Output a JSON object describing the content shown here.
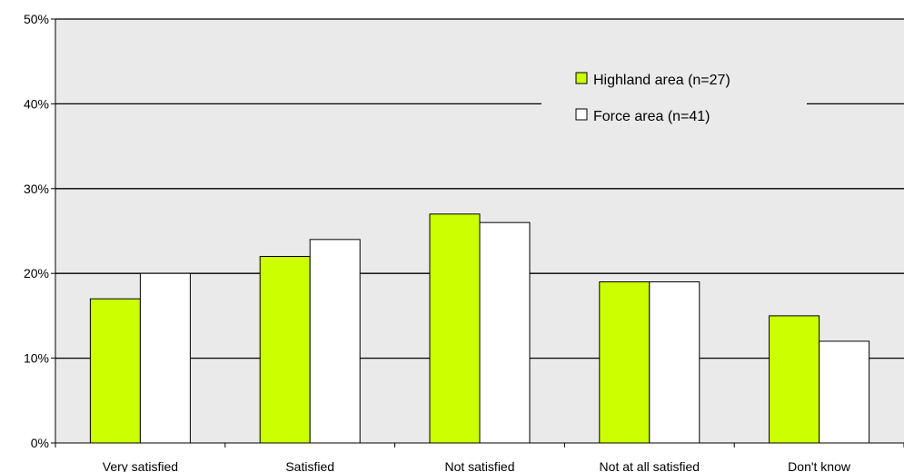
{
  "chart_data": {
    "type": "bar",
    "categories": [
      "Very satisfied",
      "Satisfied",
      "Not satisfied",
      "Not at all satisfied",
      "Don't know"
    ],
    "series": [
      {
        "name": "Highland area (n=27)",
        "values": [
          17,
          22,
          27,
          19,
          15
        ],
        "color": "#ccff00"
      },
      {
        "name": "Force area (n=41)",
        "values": [
          20,
          24,
          26,
          19,
          12
        ],
        "color": "#ffffff"
      }
    ],
    "ylim": [
      0,
      50
    ],
    "yticks": [
      0,
      10,
      20,
      30,
      40,
      50
    ],
    "ytick_labels": [
      "0%",
      "10%",
      "20%",
      "30%",
      "40%",
      "50%"
    ],
    "grid": true,
    "plot_background": "#eaeaea",
    "legend_position": "top-right"
  }
}
